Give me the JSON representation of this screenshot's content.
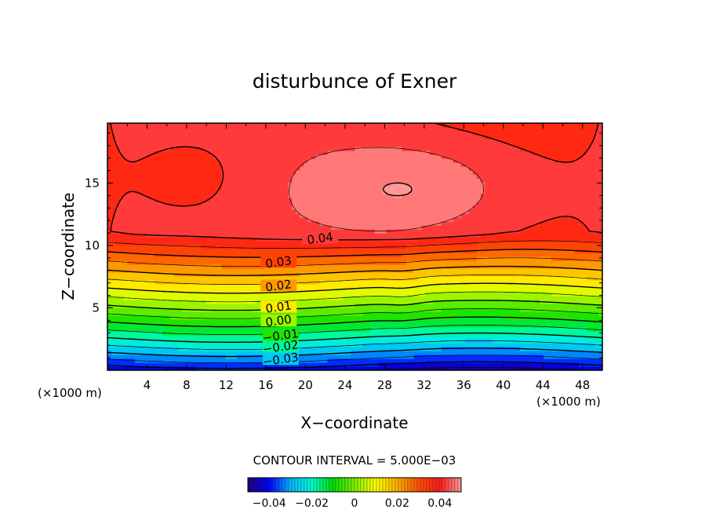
{
  "chart_data": {
    "type": "heatmap",
    "title": "disturbunce of Exner",
    "xlabel": "X−coordinate",
    "ylabel": "Z−coordinate",
    "x_unit": "(×1000 m)",
    "y_unit": "(×1000 m)",
    "xlim": [
      0,
      50
    ],
    "ylim": [
      0,
      19.8
    ],
    "x_ticks": [
      "4",
      "8",
      "12",
      "16",
      "20",
      "24",
      "28",
      "32",
      "36",
      "40",
      "44",
      "48"
    ],
    "y_ticks": [
      "5",
      "10",
      "15"
    ],
    "contour_interval_text": "CONTOUR INTERVAL = 5.000E−03",
    "contour_interval": 0.005,
    "contour_labels": [
      {
        "text": "0.04",
        "value": 0.04,
        "x": 21.5,
        "z": 10.5
      },
      {
        "text": "0.03",
        "value": 0.03,
        "x": 17.3,
        "z": 8.6
      },
      {
        "text": "0.02",
        "value": 0.02,
        "x": 17.3,
        "z": 6.7
      },
      {
        "text": "0.01",
        "value": 0.01,
        "x": 17.3,
        "z": 5.0
      },
      {
        "text": "0.00",
        "value": 0.0,
        "x": 17.3,
        "z": 3.9
      },
      {
        "text": "−0.01",
        "value": -0.01,
        "x": 17.5,
        "z": 2.7
      },
      {
        "text": "−0.02",
        "value": -0.02,
        "x": 17.5,
        "z": 1.8
      },
      {
        "text": "−0.03",
        "value": -0.03,
        "x": 17.5,
        "z": 0.8
      }
    ],
    "field_range": [
      -0.045,
      0.05
    ],
    "colorbar": {
      "min": -0.05,
      "max": 0.05,
      "tick_labels": [
        "−0.04",
        "−0.02",
        "0",
        "0.02",
        "0.04"
      ],
      "tick_values": [
        -0.04,
        -0.02,
        0,
        0.02,
        0.04
      ]
    },
    "colormap": [
      "#1a0080",
      "#0000ff",
      "#00b4ff",
      "#00ffd0",
      "#00e000",
      "#7cf000",
      "#ffff00",
      "#ffb000",
      "#ff5000",
      "#ff1a1a",
      "#ff9999"
    ]
  }
}
